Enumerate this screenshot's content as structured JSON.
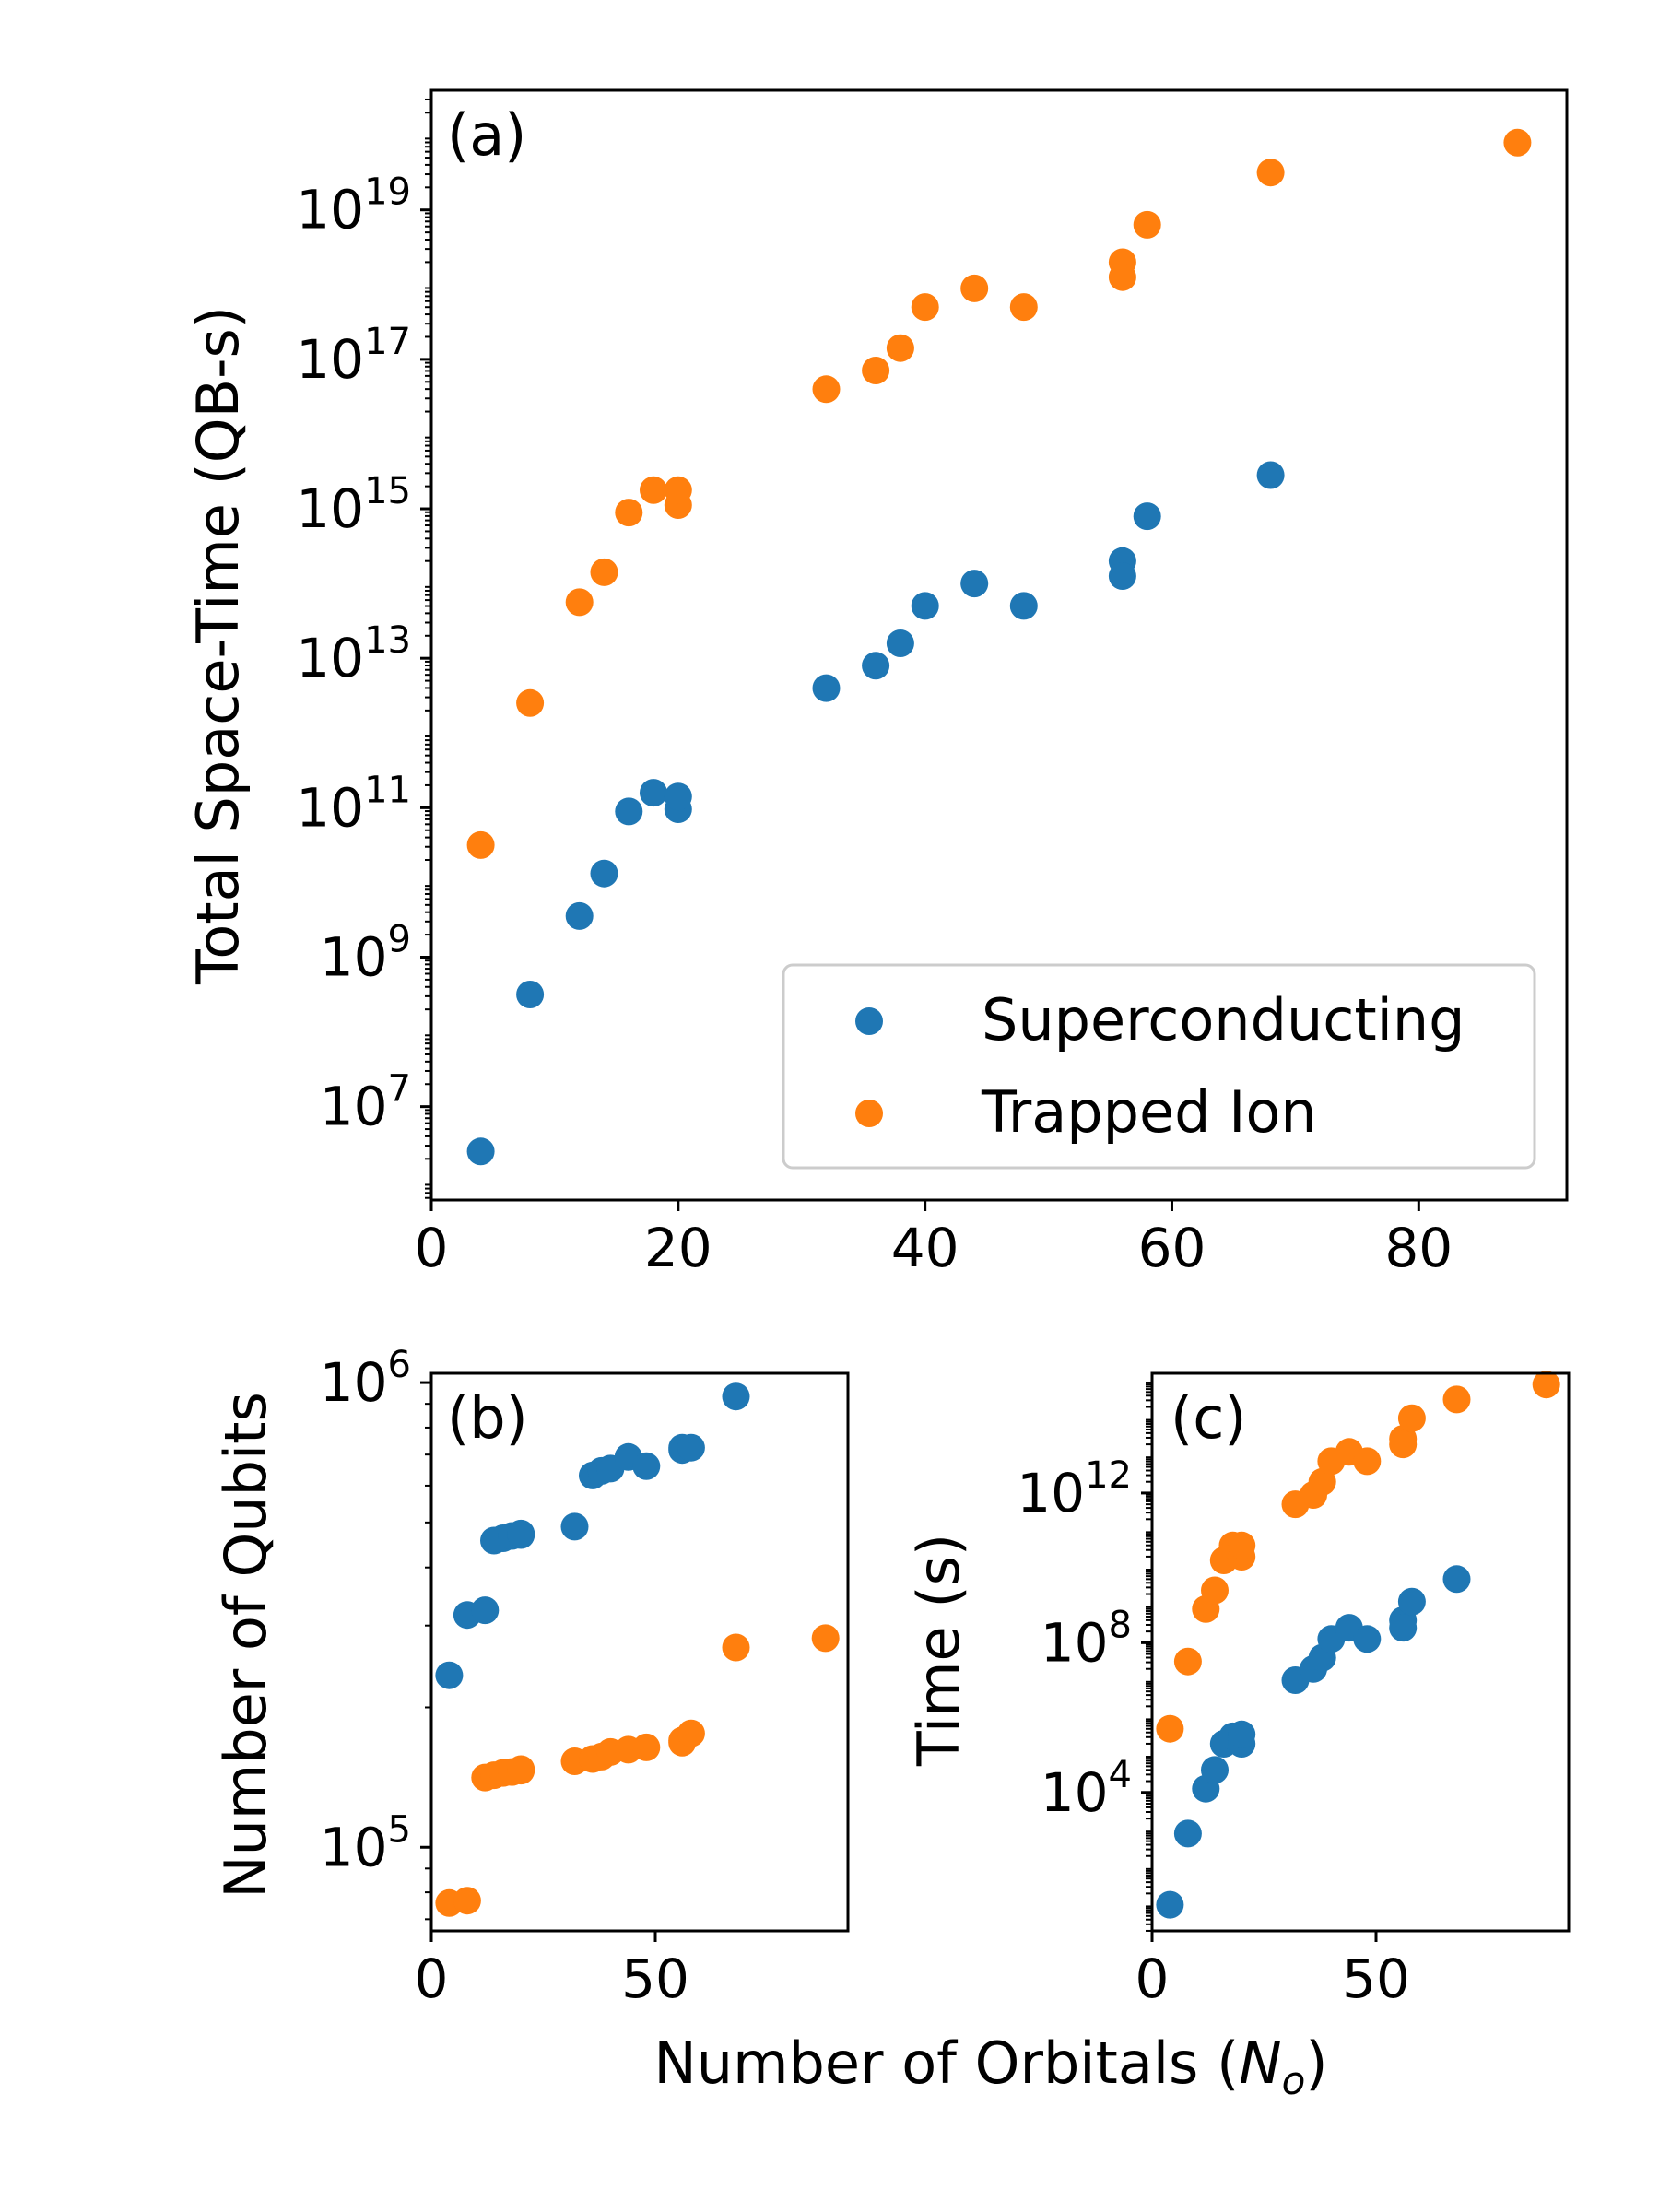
{
  "colors": {
    "superconducting": "#1f77b4",
    "trapped_ion": "#ff7f0e"
  },
  "chart_data": [
    {
      "id": "a",
      "type": "scatter",
      "panel_label": "(a)",
      "xlabel": "",
      "ylabel": "Total Space-Time (QB-s)",
      "yscale": "log",
      "xlim": [
        0,
        92
      ],
      "ylim_log10": [
        5.75,
        20.6
      ],
      "xticks": [
        0,
        20,
        40,
        60,
        80
      ],
      "yticks_log10": [
        7,
        9,
        11,
        13,
        15,
        17,
        19
      ],
      "legend": {
        "placement": "lower-right",
        "entries": [
          "Superconducting",
          "Trapped Ion"
        ]
      },
      "series": [
        {
          "name": "Superconducting",
          "x": [
            4,
            8,
            12,
            14,
            16,
            18,
            20,
            20,
            32,
            36,
            38,
            40,
            44,
            48,
            56,
            56,
            58,
            68
          ],
          "y_log10": [
            6.4,
            8.5,
            9.55,
            10.12,
            10.95,
            11.2,
            10.98,
            11.15,
            12.6,
            12.9,
            13.2,
            13.7,
            14.0,
            13.7,
            14.3,
            14.1,
            14.9,
            15.45
          ]
        },
        {
          "name": "Trapped Ion",
          "x": [
            4,
            8,
            12,
            14,
            16,
            18,
            20,
            20,
            32,
            36,
            38,
            40,
            44,
            48,
            56,
            56,
            58,
            68,
            88
          ],
          "y_log10": [
            10.5,
            12.4,
            13.75,
            14.15,
            14.95,
            15.25,
            15.05,
            15.25,
            16.6,
            16.85,
            17.15,
            17.7,
            17.95,
            17.7,
            18.3,
            18.1,
            18.8,
            19.5,
            19.9
          ]
        }
      ]
    },
    {
      "id": "b",
      "type": "scatter",
      "panel_label": "(b)",
      "xlabel": "",
      "ylabel": "Number of Qubits",
      "yscale": "log",
      "xlim": [
        0,
        93
      ],
      "ylim_log10": [
        4.82,
        6.02
      ],
      "xticks": [
        0,
        50
      ],
      "yticks_log10": [
        5,
        6
      ],
      "series": [
        {
          "name": "Superconducting",
          "x": [
            4,
            8,
            12,
            14,
            16,
            18,
            20,
            20,
            32,
            36,
            38,
            40,
            44,
            48,
            56,
            56,
            58,
            68
          ],
          "y_log10": [
            5.37,
            5.5,
            5.51,
            5.66,
            5.665,
            5.67,
            5.672,
            5.675,
            5.69,
            5.8,
            5.81,
            5.815,
            5.84,
            5.82,
            5.855,
            5.86,
            5.86,
            5.97
          ]
        },
        {
          "name": "Trapped Ion",
          "x": [
            4,
            8,
            12,
            14,
            16,
            18,
            20,
            20,
            32,
            36,
            38,
            40,
            44,
            48,
            56,
            56,
            58,
            68,
            88
          ],
          "y_log10": [
            4.88,
            4.885,
            5.15,
            5.155,
            5.16,
            5.162,
            5.165,
            5.168,
            5.185,
            5.19,
            5.195,
            5.205,
            5.21,
            5.215,
            5.225,
            5.23,
            5.245,
            5.43,
            5.45
          ]
        }
      ]
    },
    {
      "id": "c",
      "type": "scatter",
      "panel_label": "(c)",
      "xlabel": "",
      "ylabel": "Time (s)",
      "yscale": "log",
      "xlim": [
        0,
        93
      ],
      "ylim_log10": [
        0.3,
        15.2
      ],
      "xticks": [
        0,
        50
      ],
      "yticks_log10": [
        4,
        8,
        12
      ],
      "series": [
        {
          "name": "Superconducting",
          "x": [
            4,
            8,
            12,
            14,
            16,
            18,
            20,
            20,
            32,
            36,
            38,
            40,
            44,
            48,
            56,
            56,
            58,
            68
          ],
          "y_log10": [
            1.0,
            2.9,
            4.1,
            4.6,
            5.3,
            5.5,
            5.3,
            5.55,
            7.0,
            7.3,
            7.6,
            8.1,
            8.4,
            8.1,
            8.6,
            8.4,
            9.1,
            9.7
          ]
        },
        {
          "name": "Trapped Ion",
          "x": [
            4,
            8,
            12,
            14,
            16,
            18,
            20,
            20,
            32,
            36,
            38,
            40,
            44,
            48,
            56,
            56,
            58,
            68,
            88
          ],
          "y_log10": [
            5.7,
            7.5,
            8.9,
            9.4,
            10.2,
            10.6,
            10.3,
            10.6,
            11.7,
            11.95,
            12.3,
            12.85,
            13.1,
            12.85,
            13.45,
            13.3,
            14.0,
            14.5,
            14.9
          ]
        }
      ]
    }
  ],
  "shared_xlabel_text": "Number of Orbitals (",
  "shared_xlabel_symbol": "N",
  "shared_xlabel_subscript": "o",
  "shared_xlabel_close": ")"
}
